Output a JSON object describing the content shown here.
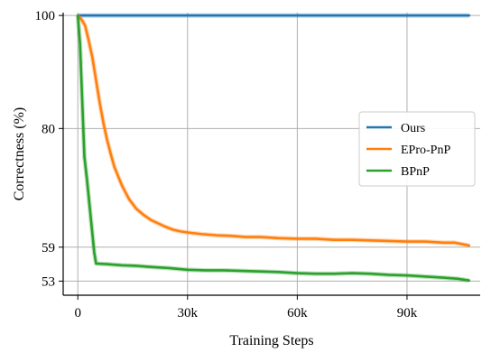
{
  "chart_data": {
    "type": "line",
    "xlabel": "Training Steps",
    "ylabel": "Correctness (%)",
    "xlim": [
      -4000,
      110000
    ],
    "ylim": [
      50.5,
      100.5
    ],
    "x_ticks": [
      0,
      30000,
      60000,
      90000
    ],
    "x_tick_labels": [
      "0",
      "30k",
      "60k",
      "90k"
    ],
    "y_ticks": [
      53,
      59,
      80,
      100
    ],
    "y_tick_labels": [
      "53",
      "59",
      "80",
      "100"
    ],
    "grid": true,
    "legend_position": "center-right",
    "series": [
      {
        "name": "Ours",
        "color": "#1f77b4",
        "x": [
          0,
          107000
        ],
        "y": [
          100,
          100
        ]
      },
      {
        "name": "EPro-PnP",
        "color": "#ff7f0e",
        "x": [
          0,
          1000,
          2000,
          3000,
          4000,
          5000,
          6000,
          7000,
          8000,
          9000,
          10000,
          12000,
          14000,
          16000,
          18000,
          20000,
          22000,
          24000,
          26000,
          28000,
          30000,
          34000,
          38000,
          42000,
          46000,
          50000,
          55000,
          60000,
          65000,
          70000,
          75000,
          80000,
          85000,
          90000,
          95000,
          100000,
          103000,
          107000
        ],
        "y": [
          100,
          99.3,
          98.2,
          95.5,
          92.5,
          88.5,
          84.5,
          81.0,
          78.0,
          75.5,
          73.2,
          70.0,
          67.5,
          65.8,
          64.7,
          63.8,
          63.2,
          62.6,
          62.1,
          61.8,
          61.6,
          61.3,
          61.1,
          61.0,
          60.8,
          60.8,
          60.6,
          60.5,
          60.5,
          60.3,
          60.3,
          60.2,
          60.1,
          60.0,
          60.0,
          59.8,
          59.8,
          59.3
        ]
      },
      {
        "name": "BPnP",
        "color": "#2ca02c",
        "x": [
          0,
          600,
          1200,
          1800,
          2500,
          3500,
          4500,
          5000,
          8000,
          12000,
          16000,
          20000,
          25000,
          30000,
          35000,
          40000,
          45000,
          50000,
          55000,
          60000,
          65000,
          70000,
          75000,
          80000,
          85000,
          90000,
          95000,
          100000,
          104000,
          107000
        ],
        "y": [
          100,
          95.0,
          85.0,
          75.0,
          71.0,
          64.5,
          58.0,
          56.1,
          56.0,
          55.8,
          55.7,
          55.5,
          55.3,
          55.0,
          54.9,
          54.9,
          54.8,
          54.7,
          54.6,
          54.4,
          54.3,
          54.3,
          54.4,
          54.3,
          54.1,
          54.0,
          53.8,
          53.6,
          53.4,
          53.1
        ]
      }
    ]
  }
}
